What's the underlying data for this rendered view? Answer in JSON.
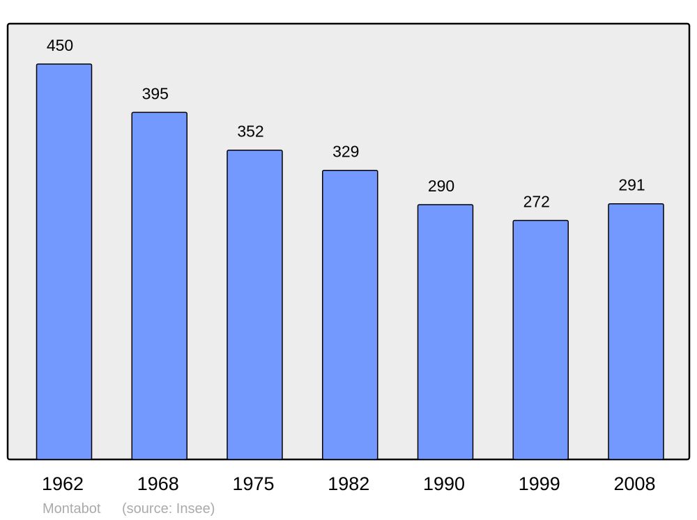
{
  "chart_data": {
    "type": "bar",
    "categories": [
      "1962",
      "1968",
      "1975",
      "1982",
      "1990",
      "1999",
      "2008"
    ],
    "values": [
      450,
      395,
      352,
      329,
      290,
      272,
      291
    ],
    "title": "",
    "xlabel": "",
    "ylabel": "",
    "ylim": [
      0,
      450
    ],
    "grid": false,
    "data_labels": true,
    "colors": {
      "bar": "#7399ff",
      "plot_background": "#ededed",
      "border": "#000000"
    }
  },
  "footer": {
    "author": "Montabot",
    "source": "(source: Insee)"
  }
}
